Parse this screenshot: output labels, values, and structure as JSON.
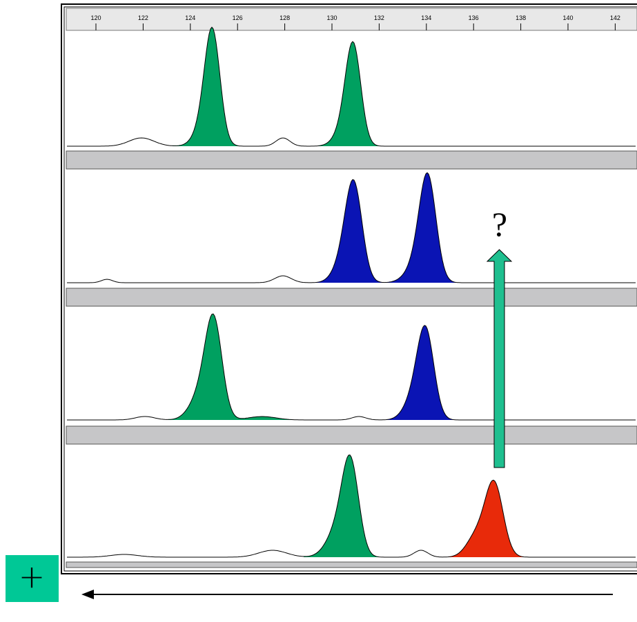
{
  "ruler": {
    "ticks": [
      "120",
      "122",
      "124",
      "126",
      "128",
      "130",
      "132",
      "134",
      "136",
      "138",
      "140",
      "142"
    ]
  },
  "annotation": "?",
  "button": "+"
}
